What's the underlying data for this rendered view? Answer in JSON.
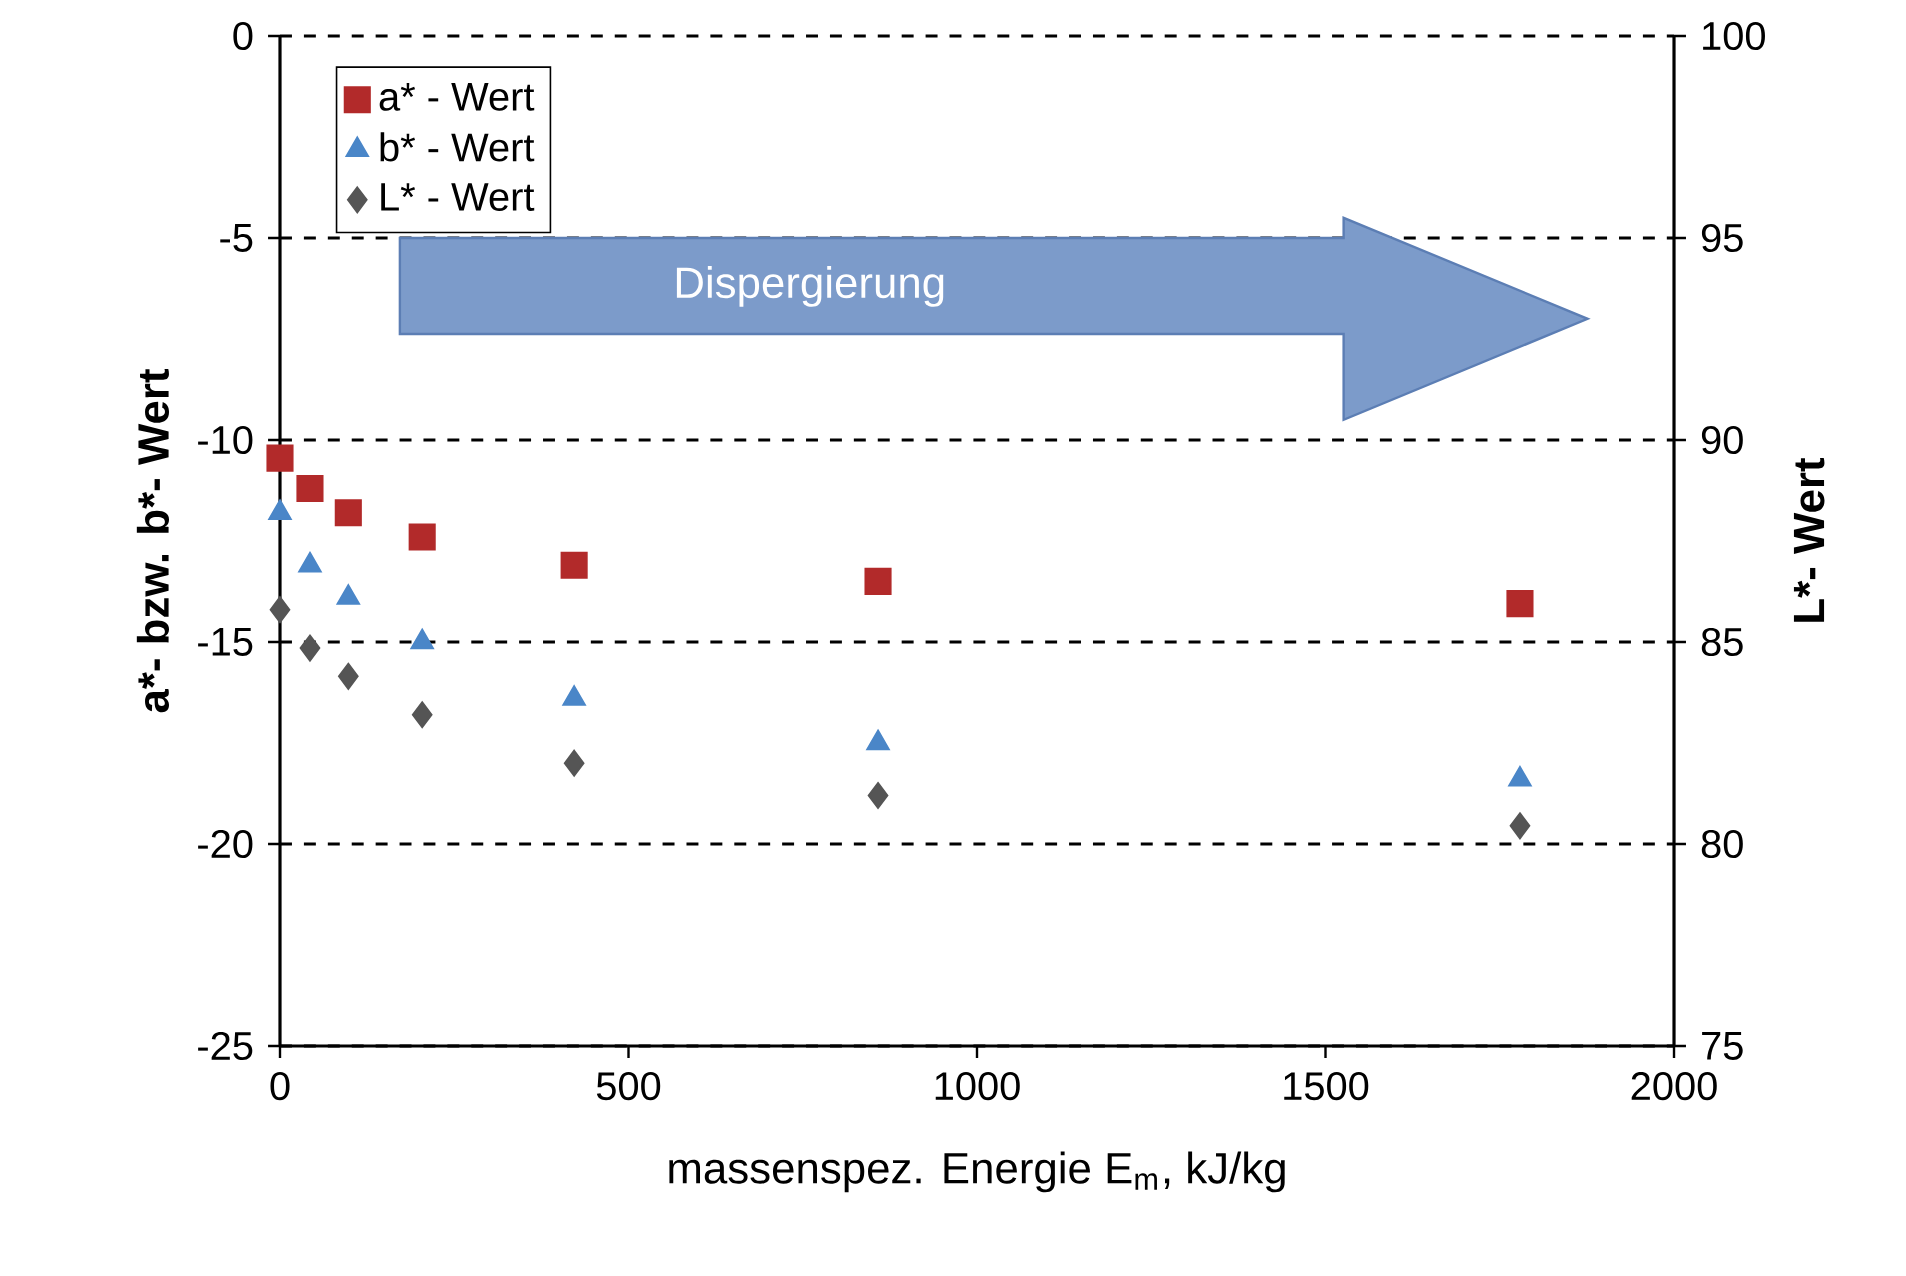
{
  "chart_data": {
    "type": "scatter",
    "xlabel": "massenspez. Energie E$_{m}$, kJ/kg",
    "ylabel": "a*- bzw. b*- Wert",
    "y2label": "L*- Wert",
    "x": [
      0,
      43,
      98,
      204,
      422,
      858,
      1779
    ],
    "series": [
      {
        "name": "a* - Wert",
        "color": "#b22a2a",
        "marker": "square",
        "values": [
          -10.45,
          -11.2,
          -11.8,
          -12.4,
          -13.1,
          -13.5,
          -14.05
        ]
      },
      {
        "name": "b* - Wert",
        "color": "#4a86c8",
        "marker": "triangle",
        "values": [
          -11.8,
          -13.1,
          -13.9,
          -15.0,
          -16.4,
          -17.5,
          -18.4
        ]
      },
      {
        "name": "L* - Wert",
        "color": "#555555",
        "marker": "diamond",
        "axis": "y2",
        "values": [
          85.8,
          84.85,
          84.15,
          83.2,
          82.0,
          81.2,
          80.45
        ]
      }
    ],
    "xlim": [
      0,
      2000
    ],
    "xticks": [
      0,
      500,
      1000,
      1500,
      2000
    ],
    "ylim": [
      -25,
      0
    ],
    "yticks": [
      -25,
      -20,
      -15,
      -10,
      -5,
      0
    ],
    "y2lim": [
      75,
      100
    ],
    "y2ticks": [
      75,
      80,
      85,
      90,
      95,
      100
    ],
    "grid": "y",
    "legend": "top left",
    "annotations": [
      "Dispergierung"
    ]
  }
}
